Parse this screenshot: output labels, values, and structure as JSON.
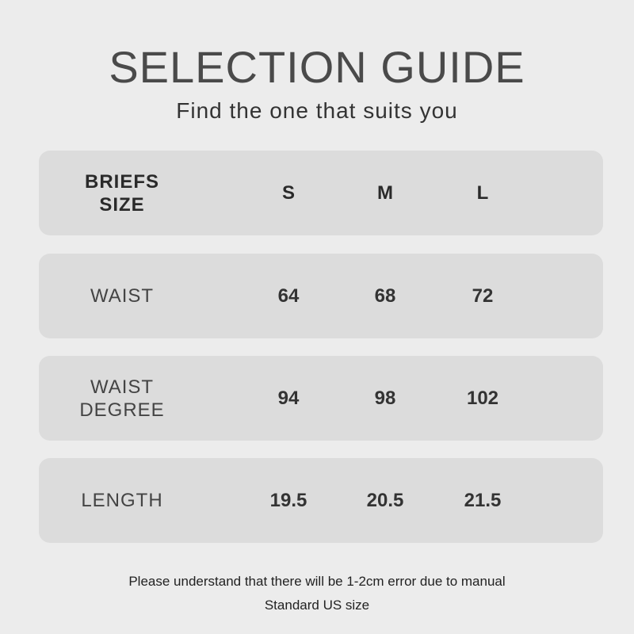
{
  "title": "SELECTION GUIDE",
  "subtitle": "Find the one that suits you",
  "header": {
    "label_line1": "BRIEFS",
    "label_line2": "SIZE",
    "sizes": [
      "S",
      "M",
      "L"
    ]
  },
  "rows": [
    {
      "label_line1": "WAIST",
      "label_line2": "",
      "values": [
        "64",
        "68",
        "72"
      ]
    },
    {
      "label_line1": "WAIST",
      "label_line2": "DEGREE",
      "values": [
        "94",
        "98",
        "102"
      ]
    },
    {
      "label_line1": "LENGTH",
      "label_line2": "",
      "values": [
        "19.5",
        "20.5",
        "21.5"
      ]
    }
  ],
  "notes": [
    "Please understand that there will be 1-2cm error due to manual",
    "Standard US size"
  ]
}
